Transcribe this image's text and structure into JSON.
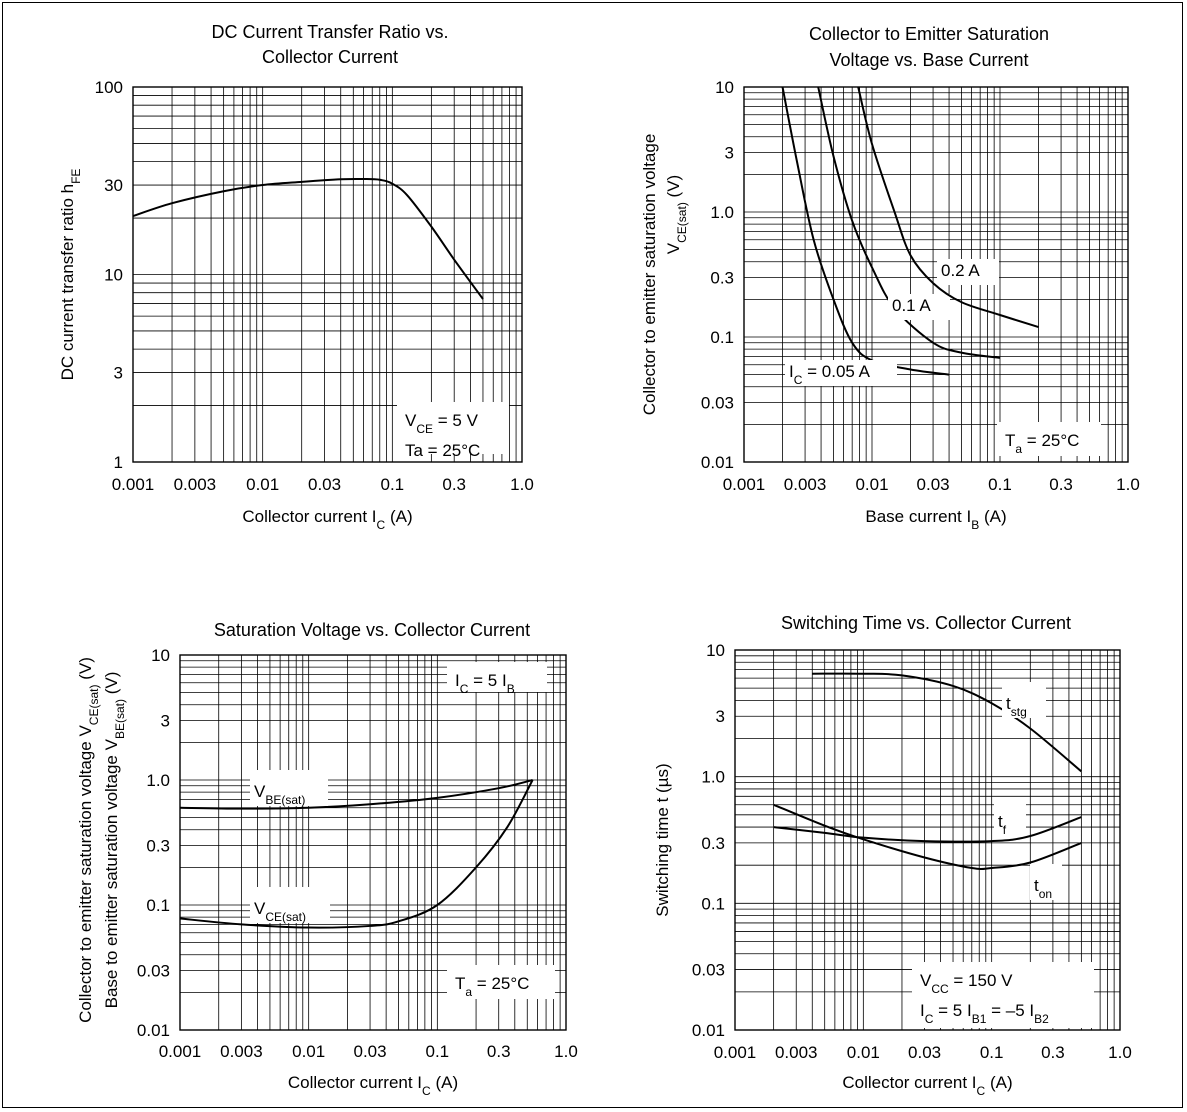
{
  "chart_data": [
    {
      "id": "c1",
      "type": "line",
      "scale": "log-log",
      "title_lines": [
        "DC Current Transfer Ratio vs.",
        "Collector Current"
      ],
      "xlabel": {
        "text": "Collector current  I",
        "sub": "C",
        "unit": "  (A)"
      },
      "ylabel": {
        "text": "DC current transfer ratio  h",
        "sub": "FE",
        "unit": ""
      },
      "xlim": [
        0.001,
        1.0
      ],
      "ylim": [
        1,
        100
      ],
      "xticks": [
        "0.001",
        "0.003",
        "0.01",
        "0.03",
        "0.1",
        "0.3",
        "1.0"
      ],
      "yticks": [
        "1",
        "3",
        "10",
        "30",
        "100"
      ],
      "grid": true,
      "annotations": [
        {
          "lines": [
            {
              "text": "V",
              "sub": "CE",
              "rest": " = 5 V"
            },
            {
              "text": "Ta = 25°C",
              "sub": "",
              "rest": ""
            }
          ],
          "position": "bottom-right"
        }
      ],
      "series": [
        {
          "label": null,
          "points": [
            [
              0.001,
              20.5
            ],
            [
              0.002,
              24
            ],
            [
              0.005,
              27.8
            ],
            [
              0.01,
              30
            ],
            [
              0.02,
              31.2
            ],
            [
              0.04,
              32.2
            ],
            [
              0.06,
              32.3
            ],
            [
              0.08,
              32
            ],
            [
              0.1,
              30.5
            ],
            [
              0.13,
              26.5
            ],
            [
              0.2,
              18
            ],
            [
              0.3,
              12
            ],
            [
              0.5,
              7.4
            ]
          ]
        }
      ]
    },
    {
      "id": "c2",
      "type": "line",
      "scale": "log-log",
      "title_lines": [
        "Collector to Emitter Saturation",
        "Voltage vs. Base Current"
      ],
      "xlabel": {
        "text": "Base current  I",
        "sub": "B",
        "unit": "  (A)"
      },
      "ylabel": {
        "text": "Collector to emitter saturation voltage",
        "line2": "V",
        "sub": "CE(sat)",
        "unit": "  (V)"
      },
      "xlim": [
        0.001,
        1.0
      ],
      "ylim": [
        0.01,
        10
      ],
      "xticks": [
        "0.001",
        "0.003",
        "0.01",
        "0.03",
        "0.1",
        "0.3",
        "1.0"
      ],
      "yticks": [
        "0.01",
        "0.03",
        "0.1",
        "0.3",
        "1.0",
        "3",
        "10"
      ],
      "grid": true,
      "annotations": [
        {
          "lines": [
            {
              "text": "T",
              "sub": "a",
              "rest": " = 25°C"
            }
          ],
          "position": "bottom-right"
        }
      ],
      "series": [
        {
          "label": {
            "text": "I",
            "sub": "C",
            "rest": " = 0.05 A"
          },
          "points": [
            [
              0.002,
              10
            ],
            [
              0.0026,
              2.5
            ],
            [
              0.0035,
              0.6
            ],
            [
              0.005,
              0.2
            ],
            [
              0.007,
              0.09
            ],
            [
              0.01,
              0.065
            ],
            [
              0.02,
              0.055
            ],
            [
              0.04,
              0.05
            ]
          ]
        },
        {
          "label": {
            "text": "0.1 A",
            "sub": "",
            "rest": ""
          },
          "points": [
            [
              0.0038,
              10
            ],
            [
              0.005,
              2.8
            ],
            [
              0.007,
              0.85
            ],
            [
              0.01,
              0.36
            ],
            [
              0.015,
              0.17
            ],
            [
              0.03,
              0.09
            ],
            [
              0.05,
              0.075
            ],
            [
              0.1,
              0.068
            ]
          ]
        },
        {
          "label": {
            "text": "0.2 A",
            "sub": "",
            "rest": ""
          },
          "points": [
            [
              0.0078,
              10
            ],
            [
              0.01,
              3.5
            ],
            [
              0.015,
              1.0
            ],
            [
              0.02,
              0.45
            ],
            [
              0.03,
              0.27
            ],
            [
              0.05,
              0.19
            ],
            [
              0.1,
              0.15
            ],
            [
              0.2,
              0.12
            ]
          ]
        }
      ]
    },
    {
      "id": "c3",
      "type": "line",
      "scale": "log-log",
      "title_lines": [
        "Saturation Voltage vs. Collector Current"
      ],
      "xlabel": {
        "text": "Collector current  I",
        "sub": "C",
        "unit": "  (A)"
      },
      "ylabel": {
        "text": "Collector to emitter saturation voltage  V",
        "sub": "CE(sat)",
        "unit": "  (V)",
        "line2": "Base to emitter saturation voltage  V",
        "sub2": "BE(sat)",
        "unit2": "  (V)"
      },
      "xlim": [
        0.001,
        1.0
      ],
      "ylim": [
        0.01,
        10
      ],
      "xticks": [
        "0.001",
        "0.003",
        "0.01",
        "0.03",
        "0.1",
        "0.3",
        "1.0"
      ],
      "yticks": [
        "0.01",
        "0.03",
        "0.1",
        "0.3",
        "1.0",
        "3",
        "10"
      ],
      "grid": true,
      "annotations": [
        {
          "lines": [
            {
              "text": "I",
              "sub": "C",
              "rest": " = 5 I",
              "sub2": "B"
            }
          ],
          "position": "top-right"
        },
        {
          "lines": [
            {
              "text": "T",
              "sub": "a",
              "rest": " = 25°C"
            }
          ],
          "position": "bottom-right"
        }
      ],
      "series": [
        {
          "label": {
            "text": "V",
            "sub": "BE(sat)",
            "rest": ""
          },
          "points": [
            [
              0.001,
              0.6
            ],
            [
              0.003,
              0.59
            ],
            [
              0.01,
              0.6
            ],
            [
              0.03,
              0.64
            ],
            [
              0.1,
              0.72
            ],
            [
              0.3,
              0.86
            ],
            [
              0.55,
              1.0
            ]
          ]
        },
        {
          "label": {
            "text": "V",
            "sub": "CE(sat)",
            "rest": ""
          },
          "points": [
            [
              0.001,
              0.078
            ],
            [
              0.003,
              0.07
            ],
            [
              0.01,
              0.066
            ],
            [
              0.03,
              0.068
            ],
            [
              0.05,
              0.074
            ],
            [
              0.1,
              0.1
            ],
            [
              0.2,
              0.2
            ],
            [
              0.35,
              0.42
            ],
            [
              0.55,
              1.0
            ]
          ]
        }
      ]
    },
    {
      "id": "c4",
      "type": "line",
      "scale": "log-log",
      "title_lines": [
        "Switching Time vs. Collector Current"
      ],
      "xlabel": {
        "text": "Collector current  I",
        "sub": "C",
        "unit": "  (A)"
      },
      "ylabel": {
        "text": "Switching time  t  (µs)",
        "sub": "",
        "unit": ""
      },
      "xlim": [
        0.001,
        1.0
      ],
      "ylim": [
        0.01,
        10
      ],
      "xticks": [
        "0.001",
        "0.003",
        "0.01",
        "0.03",
        "0.1",
        "0.3",
        "1.0"
      ],
      "yticks": [
        "0.01",
        "0.03",
        "0.1",
        "0.3",
        "1.0",
        "3",
        "10"
      ],
      "grid": true,
      "annotations": [
        {
          "lines": [
            {
              "text": "V",
              "sub": "CC",
              "rest": " = 150 V"
            },
            {
              "text": "I",
              "sub": "C",
              "rest": " = 5 I",
              "sub2": "B1",
              "rest2": " = –5 I",
              "sub3": "B2"
            }
          ],
          "position": "bottom-right"
        }
      ],
      "series": [
        {
          "label": {
            "text": "t",
            "sub": "stg",
            "rest": ""
          },
          "points": [
            [
              0.004,
              6.5
            ],
            [
              0.01,
              6.5
            ],
            [
              0.02,
              6.3
            ],
            [
              0.05,
              5.2
            ],
            [
              0.1,
              3.8
            ],
            [
              0.2,
              2.4
            ],
            [
              0.5,
              1.1
            ]
          ]
        },
        {
          "label": {
            "text": "t",
            "sub": "f",
            "rest": ""
          },
          "points": [
            [
              0.002,
              0.4
            ],
            [
              0.005,
              0.36
            ],
            [
              0.01,
              0.33
            ],
            [
              0.03,
              0.31
            ],
            [
              0.1,
              0.31
            ],
            [
              0.2,
              0.34
            ],
            [
              0.5,
              0.48
            ]
          ]
        },
        {
          "label": {
            "text": "t",
            "sub": "on",
            "rest": ""
          },
          "points": [
            [
              0.002,
              0.6
            ],
            [
              0.005,
              0.41
            ],
            [
              0.01,
              0.32
            ],
            [
              0.03,
              0.23
            ],
            [
              0.07,
              0.19
            ],
            [
              0.1,
              0.19
            ],
            [
              0.2,
              0.21
            ],
            [
              0.5,
              0.3
            ]
          ]
        }
      ]
    }
  ]
}
